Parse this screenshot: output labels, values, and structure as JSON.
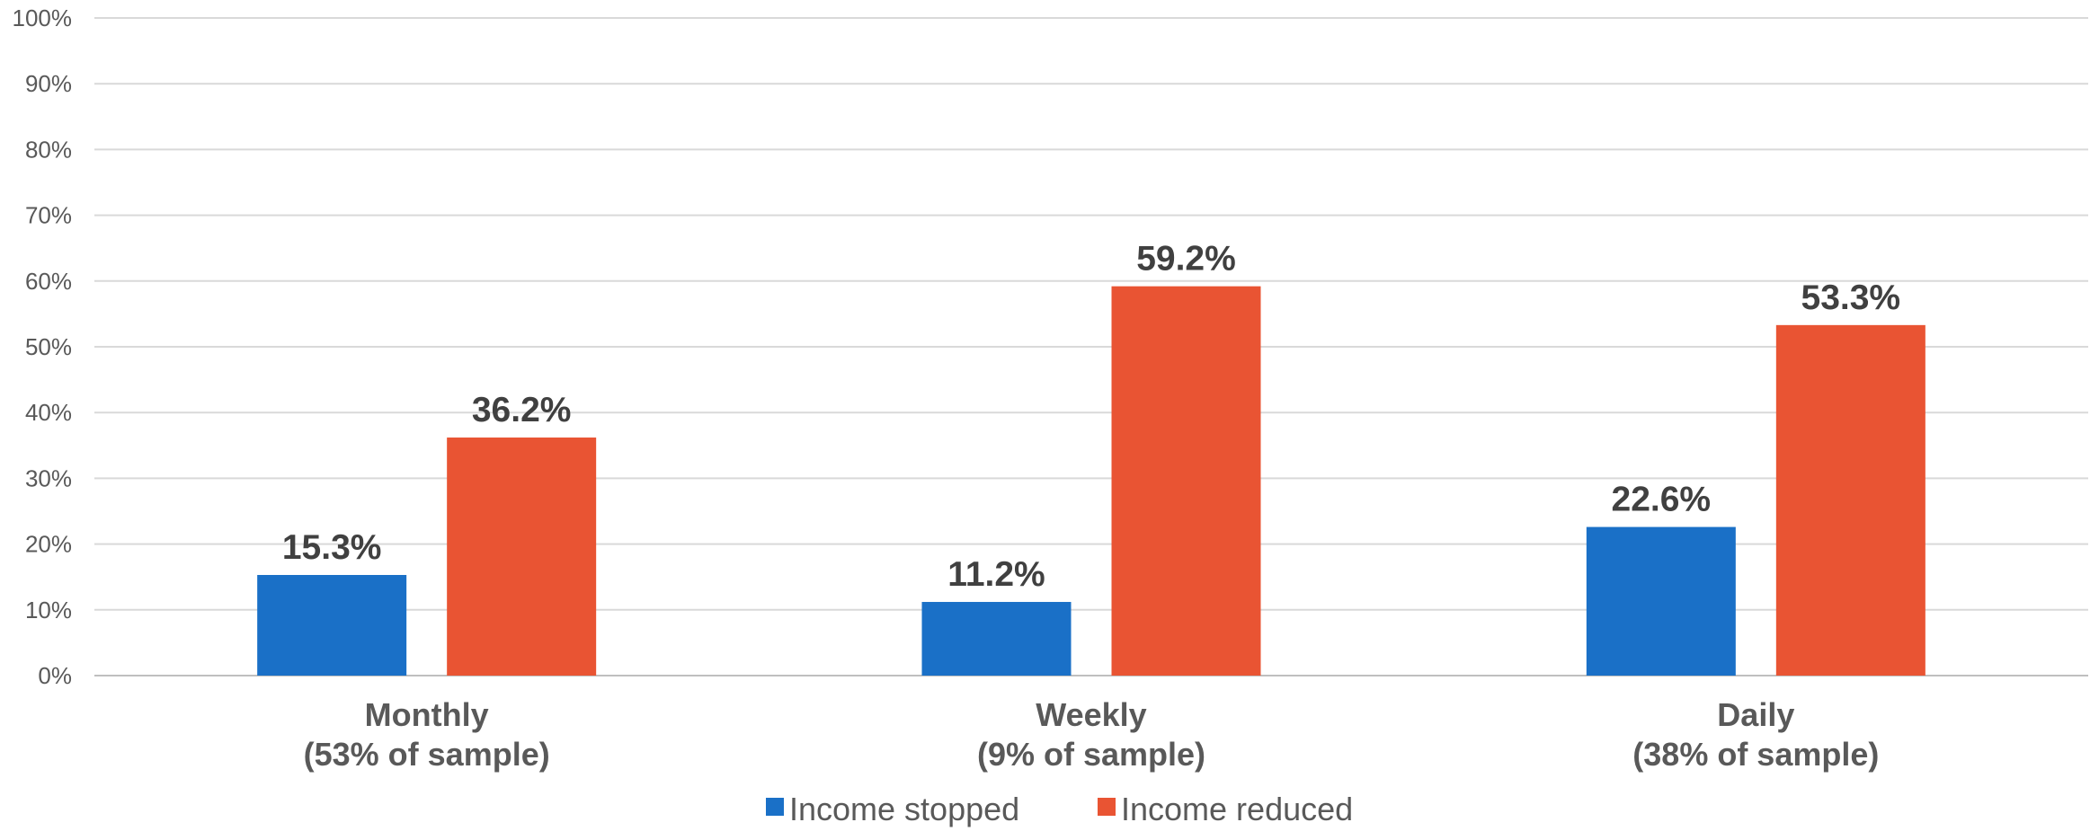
{
  "chart_data": {
    "type": "bar",
    "title": "",
    "xlabel": "",
    "ylabel": "",
    "ylim": [
      0,
      100
    ],
    "y_ticks": [
      "0%",
      "10%",
      "20%",
      "30%",
      "40%",
      "50%",
      "60%",
      "70%",
      "80%",
      "90%",
      "100%"
    ],
    "grid": true,
    "legend_position": "bottom",
    "categories": [
      {
        "line1": "Monthly",
        "line2": "(53% of sample)"
      },
      {
        "line1": "Weekly",
        "line2": "(9% of sample)"
      },
      {
        "line1": "Daily",
        "line2": "(38% of sample)"
      }
    ],
    "series": [
      {
        "name": "Income stopped",
        "color": "#1a70c7",
        "values": [
          15.3,
          11.2,
          22.6
        ],
        "labels": [
          "15.3%",
          "11.2%",
          "22.6%"
        ]
      },
      {
        "name": "Income reduced",
        "color": "#e95433",
        "values": [
          36.2,
          59.2,
          53.3
        ],
        "labels": [
          "36.2%",
          "59.2%",
          "53.3%"
        ]
      }
    ]
  }
}
